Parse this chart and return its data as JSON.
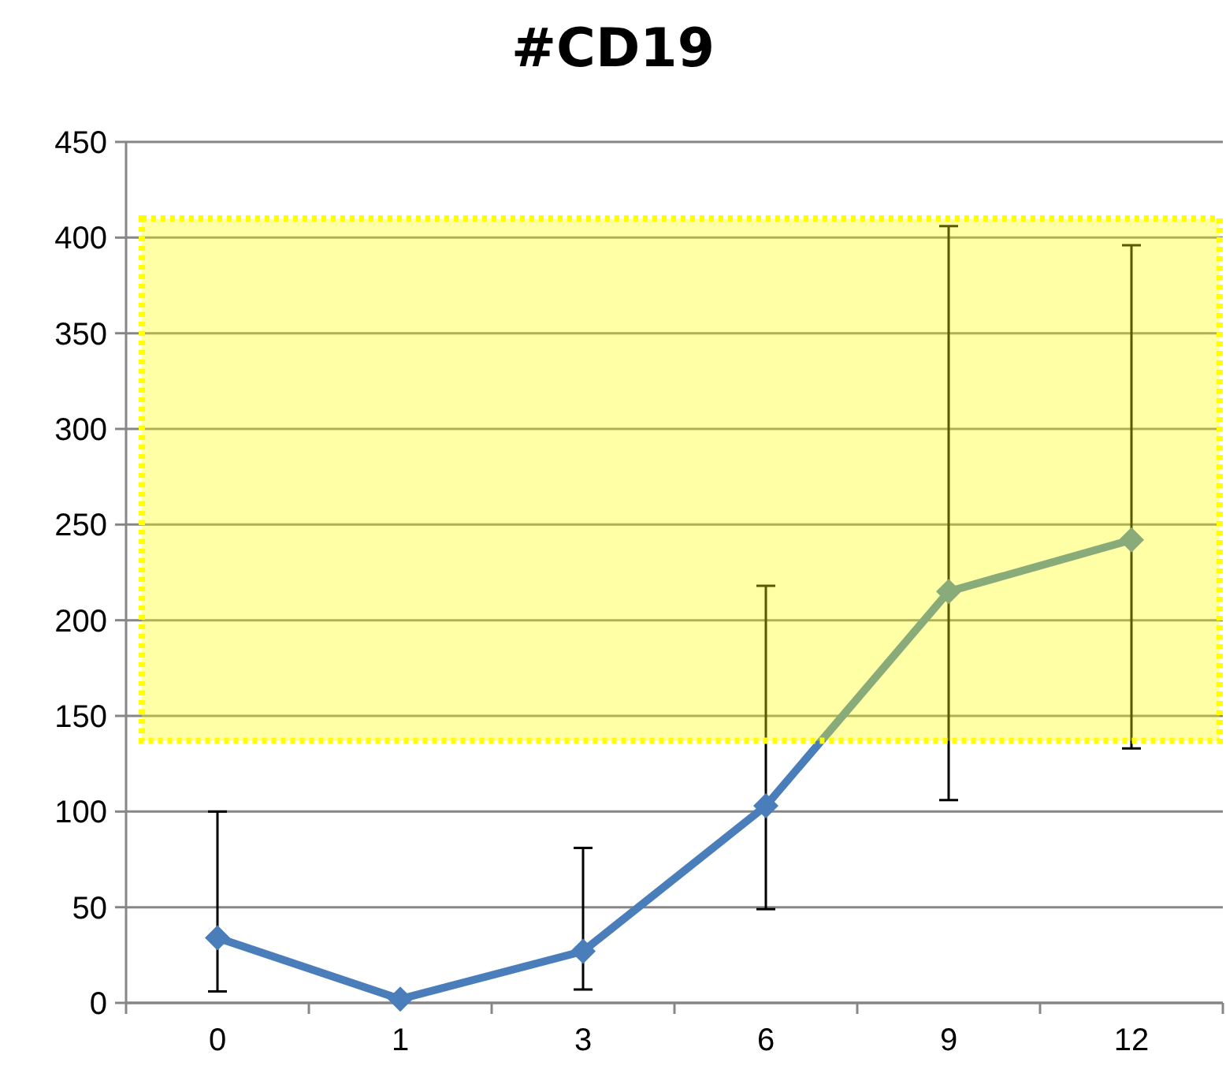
{
  "chart_data": {
    "type": "line",
    "title": "#CD19",
    "categories": [
      "0",
      "1",
      "3",
      "6",
      "9",
      "12"
    ],
    "series": [
      {
        "color": "#4a7ebb",
        "values": [
          34,
          2,
          27,
          103,
          215,
          242
        ],
        "errors": [
          [
            6,
            100
          ],
          null,
          [
            7,
            81
          ],
          [
            49,
            218
          ],
          [
            106,
            406
          ],
          [
            133,
            396
          ]
        ]
      }
    ],
    "ylim": [
      0,
      450
    ],
    "yticks": [
      0,
      50,
      100,
      150,
      200,
      250,
      300,
      350,
      400,
      450
    ],
    "grid": "y",
    "marker": "diamond",
    "line_style": "solid",
    "bands": [
      {
        "axis": "y",
        "from": 137,
        "to": 410,
        "color": "#ffff00"
      }
    ]
  }
}
